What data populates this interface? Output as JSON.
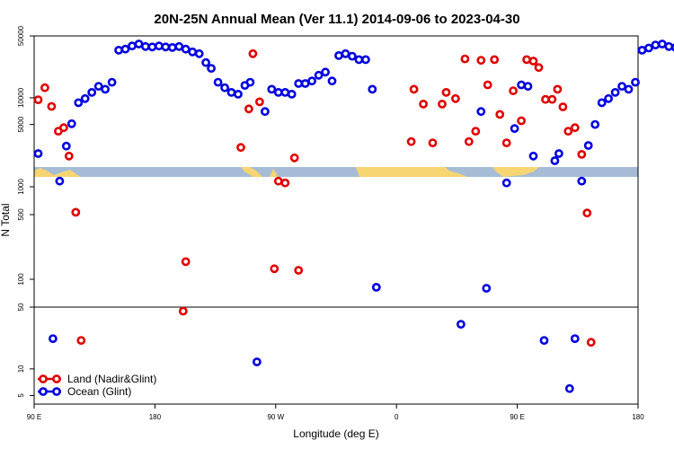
{
  "chart_data": {
    "type": "scatter",
    "title": "20N-25N Annual Mean (Ver 11.1)   2014-09-06 to 2023-04-30",
    "xlabel": "Longitude (deg E)",
    "ylabel": "N Total",
    "x_ticks": [
      {
        "value": 90,
        "label": "90 E"
      },
      {
        "value": 180,
        "label": "180"
      },
      {
        "value": 270,
        "label": "90 W"
      },
      {
        "value": 360,
        "label": "0"
      },
      {
        "value": 450,
        "label": "90 E"
      },
      {
        "value": 540,
        "label": "180"
      }
    ],
    "xlim": [
      90,
      540
    ],
    "y_scale": "log",
    "y_ticks": [
      {
        "value": 5,
        "label": "5"
      },
      {
        "value": 10,
        "label": "10"
      },
      {
        "value": 50,
        "label": "50"
      },
      {
        "value": 100,
        "label": "100"
      },
      {
        "value": 500,
        "label": "500"
      },
      {
        "value": 1000,
        "label": "1000"
      },
      {
        "value": 5000,
        "label": "5000"
      },
      {
        "value": 10000,
        "label": "10000"
      },
      {
        "value": 50000,
        "label": "50000"
      }
    ],
    "ylim": [
      4,
      50000
    ],
    "reference_line_y": 50,
    "legend_position": "bottom-left",
    "series": [
      {
        "name": "Land (Nadir&Glint)",
        "color": "#e00000",
        "points": [
          [
            93,
            9500
          ],
          [
            98,
            13000
          ],
          [
            103,
            8000
          ],
          [
            108,
            4200
          ],
          [
            112,
            4600
          ],
          [
            116,
            2200
          ],
          [
            121,
            530
          ],
          [
            125,
            21
          ],
          [
            201,
            45
          ],
          [
            203,
            155
          ],
          [
            244,
            2750
          ],
          [
            250,
            7500
          ],
          [
            253,
            31500
          ],
          [
            258,
            9000
          ],
          [
            269,
            130
          ],
          [
            272,
            1150
          ],
          [
            277,
            1100
          ],
          [
            284,
            2100
          ],
          [
            287,
            125
          ],
          [
            371,
            3200
          ],
          [
            373,
            12500
          ],
          [
            380,
            8500
          ],
          [
            387,
            3100
          ],
          [
            394,
            8500
          ],
          [
            397,
            11500
          ],
          [
            404,
            9800
          ],
          [
            411,
            27500
          ],
          [
            414,
            3200
          ],
          [
            419,
            4200
          ],
          [
            423,
            26500
          ],
          [
            428,
            14000
          ],
          [
            433,
            27000
          ],
          [
            437,
            6500
          ],
          [
            442,
            3100
          ],
          [
            447,
            12000
          ],
          [
            453,
            5500
          ],
          [
            457,
            27000
          ],
          [
            462,
            26000
          ],
          [
            466,
            22000
          ],
          [
            471,
            9600
          ],
          [
            476,
            9600
          ],
          [
            480,
            12500
          ],
          [
            484,
            7900
          ],
          [
            488,
            4200
          ],
          [
            493,
            4600
          ],
          [
            498,
            2300
          ],
          [
            502,
            520
          ],
          [
            505,
            20
          ]
        ]
      },
      {
        "name": "Ocean (Glint)",
        "color": "#0000e0",
        "points": [
          [
            93,
            2350
          ],
          [
            104,
            22
          ],
          [
            109,
            1150
          ],
          [
            114,
            2850
          ],
          [
            118,
            5100
          ],
          [
            123,
            8800
          ],
          [
            128,
            9800
          ],
          [
            133,
            11500
          ],
          [
            138,
            13500
          ],
          [
            143,
            12500
          ],
          [
            148,
            15000
          ],
          [
            153,
            34500
          ],
          [
            158,
            35500
          ],
          [
            163,
            38500
          ],
          [
            168,
            40500
          ],
          [
            173,
            38000
          ],
          [
            178,
            37500
          ],
          [
            183,
            38500
          ],
          [
            188,
            37500
          ],
          [
            193,
            37000
          ],
          [
            198,
            38000
          ],
          [
            203,
            35500
          ],
          [
            208,
            33000
          ],
          [
            213,
            31500
          ],
          [
            218,
            25000
          ],
          [
            222,
            21500
          ],
          [
            227,
            15000
          ],
          [
            232,
            13000
          ],
          [
            237,
            11500
          ],
          [
            242,
            11000
          ],
          [
            247,
            13800
          ],
          [
            251,
            15000
          ],
          [
            256,
            12
          ],
          [
            262,
            7000
          ],
          [
            267,
            12500
          ],
          [
            272,
            11500
          ],
          [
            277,
            11500
          ],
          [
            282,
            11000
          ],
          [
            287,
            14500
          ],
          [
            292,
            14500
          ],
          [
            297,
            15500
          ],
          [
            302,
            18000
          ],
          [
            307,
            19500
          ],
          [
            312,
            15500
          ],
          [
            317,
            30000
          ],
          [
            322,
            31500
          ],
          [
            327,
            29500
          ],
          [
            332,
            27000
          ],
          [
            337,
            27000
          ],
          [
            342,
            12500
          ],
          [
            345,
            82
          ],
          [
            408,
            32
          ],
          [
            423,
            7000
          ],
          [
            427,
            80
          ],
          [
            442,
            1100
          ],
          [
            448,
            4500
          ],
          [
            453,
            14000
          ],
          [
            458,
            13500
          ],
          [
            462,
            2200
          ],
          [
            470,
            21
          ],
          [
            478,
            1950
          ],
          [
            481,
            2350
          ],
          [
            489,
            6
          ],
          [
            493,
            22
          ],
          [
            498,
            1150
          ],
          [
            503,
            2900
          ],
          [
            508,
            5000
          ],
          [
            513,
            8800
          ],
          [
            518,
            9800
          ],
          [
            523,
            11500
          ],
          [
            528,
            13500
          ],
          [
            533,
            12500
          ],
          [
            538,
            15000
          ],
          [
            543,
            34500
          ],
          [
            548,
            36500
          ],
          [
            553,
            39500
          ],
          [
            558,
            40500
          ],
          [
            563,
            38000
          ],
          [
            568,
            37000
          ]
        ]
      }
    ]
  }
}
